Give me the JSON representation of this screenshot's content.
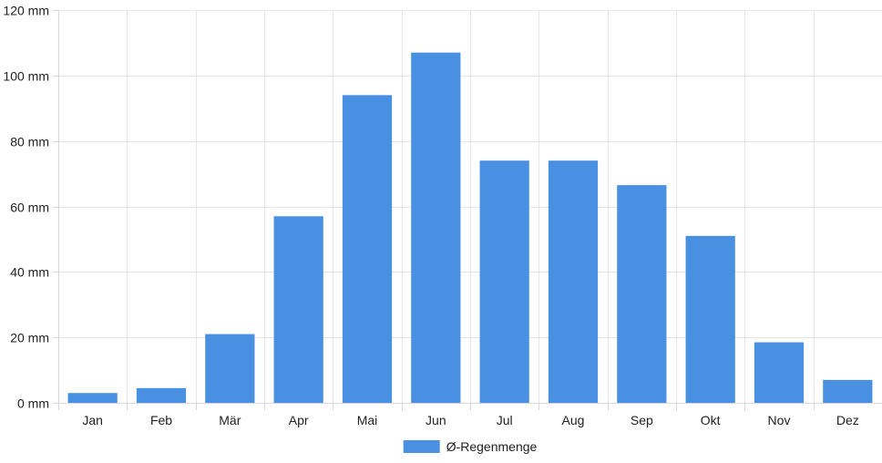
{
  "chart_data": {
    "type": "bar",
    "categories": [
      "Jan",
      "Feb",
      "Mär",
      "Apr",
      "Mai",
      "Jun",
      "Jul",
      "Aug",
      "Sep",
      "Okt",
      "Nov",
      "Dez"
    ],
    "series": [
      {
        "name": "Ø-Regenmenge",
        "color": "#4a90e2",
        "values": [
          3,
          4.5,
          21,
          57,
          94,
          107,
          74,
          74,
          66.5,
          51,
          18.5,
          7
        ]
      }
    ],
    "ylim": [
      0,
      120
    ],
    "yticks": [
      0,
      20,
      40,
      60,
      80,
      100,
      120
    ],
    "yunit": "mm",
    "grid": true,
    "legend_position": "bottom"
  }
}
